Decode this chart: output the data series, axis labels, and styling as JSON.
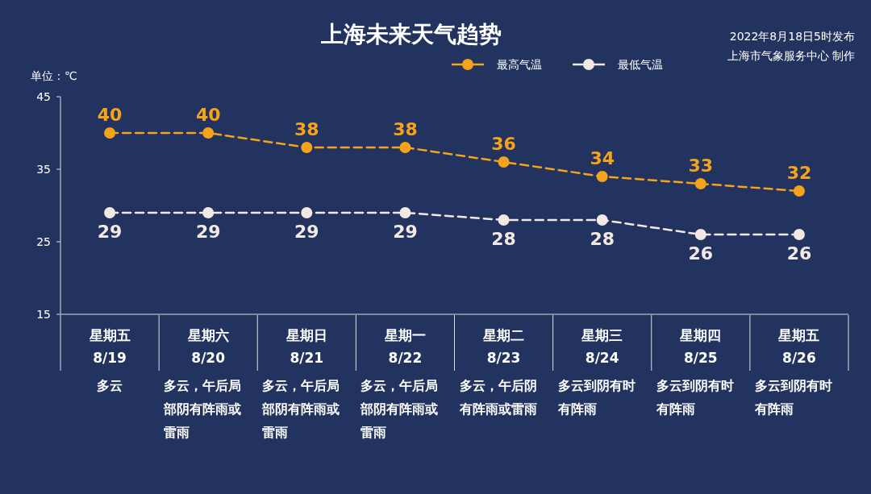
{
  "chart_data": {
    "type": "line",
    "title": "上海未来天气趋势",
    "ylabel": "单位：℃",
    "categories": [
      "星期五\n8/19",
      "星期六\n8/20",
      "星期日\n8/21",
      "星期一\n8/22",
      "星期二\n8/23",
      "星期三\n8/24",
      "星期四\n8/25",
      "星期五\n8/26"
    ],
    "series": [
      {
        "name": "最高气温",
        "color": "#f5a31a",
        "values": [
          40,
          40,
          38,
          38,
          36,
          34,
          33,
          32
        ]
      },
      {
        "name": "最低气温",
        "color": "#f3e9e4",
        "values": [
          29,
          29,
          29,
          29,
          28,
          28,
          26,
          26
        ]
      }
    ],
    "ylim": [
      15,
      45
    ],
    "yticks": [
      15,
      25,
      35,
      45
    ],
    "grid": false,
    "legend": "top right",
    "marker": "circle",
    "line_style": "dashed",
    "data_labels": true,
    "annotations": [
      "多云",
      "多云，午后局部阴有阵雨或雷雨",
      "多云，午后局部阴有阵雨或雷雨",
      "多云，午后局部阴有阵雨或雷雨",
      "多云，午后阴有阵雨或雷雨",
      "多云到阴有时有阵雨",
      "多云到阴有时有阵雨",
      "多云到阴有时有阵雨",
      "2022年8月18日5时发布",
      "上海市气象服务中心 制作"
    ]
  }
}
